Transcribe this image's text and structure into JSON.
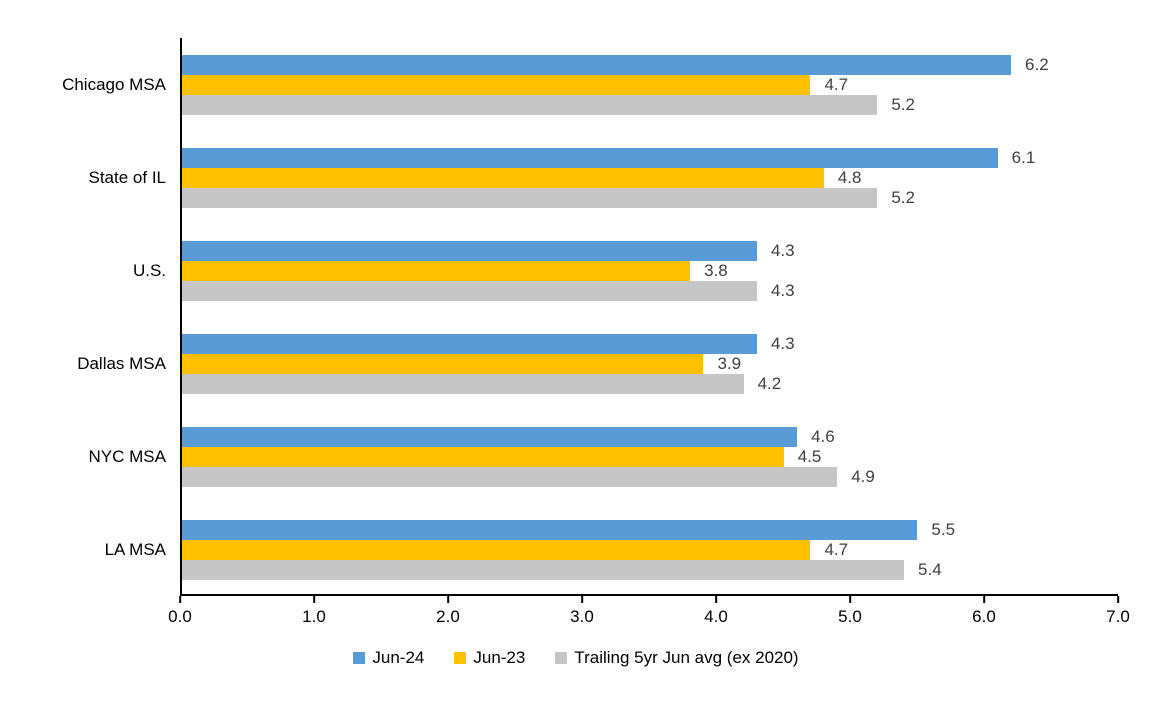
{
  "chart_data": {
    "type": "bar",
    "orientation": "horizontal",
    "title": "",
    "xlabel": "",
    "ylabel": "",
    "xlim": [
      0,
      7
    ],
    "x_ticks": [
      "0.0",
      "1.0",
      "2.0",
      "3.0",
      "4.0",
      "5.0",
      "6.0",
      "7.0"
    ],
    "grid": false,
    "legend_position": "bottom",
    "categories": [
      "Chicago MSA",
      "State of IL",
      "U.S.",
      "Dallas MSA",
      "NYC MSA",
      "LA MSA"
    ],
    "series": [
      {
        "name": "Jun-24",
        "color": "#5B9BD5",
        "values": [
          6.2,
          6.1,
          4.3,
          4.3,
          4.6,
          5.5
        ]
      },
      {
        "name": "Jun-23",
        "color": "#FFC000",
        "values": [
          4.7,
          4.8,
          3.8,
          3.9,
          4.5,
          4.7
        ]
      },
      {
        "name": "Trailing 5yr Jun avg (ex 2020)",
        "color": "#C6C6C6",
        "values": [
          5.2,
          5.2,
          4.3,
          4.2,
          4.9,
          5.4
        ]
      }
    ],
    "value_labels": {
      "visible": true,
      "decimals": 1,
      "color": "#404040"
    }
  },
  "colors": {
    "background": "#FFFFFF",
    "axis_line": "#000000",
    "text": "#000000",
    "value_label": "#404040"
  }
}
